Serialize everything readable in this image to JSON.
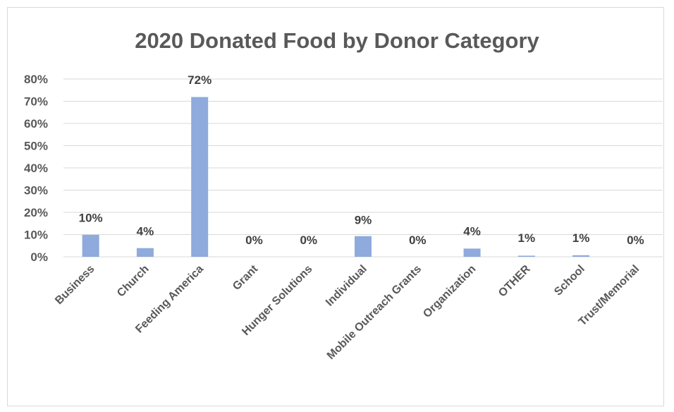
{
  "chart_data": {
    "type": "bar",
    "title": "2020 Donated Food by Donor Category",
    "categories": [
      "Business",
      "Church",
      "Feeding America",
      "Grant",
      "Hunger Solutions",
      "Individual",
      "Mobile Outreach Grants",
      "Organization",
      "OTHER",
      "School",
      "Trust/Memorial"
    ],
    "values": [
      10,
      4,
      72,
      0,
      0,
      9,
      0,
      4,
      1,
      1,
      0
    ],
    "data_labels": [
      "10%",
      "4%",
      "72%",
      "0%",
      "0%",
      "9%",
      "0%",
      "4%",
      "1%",
      "1%",
      "0%"
    ],
    "bar_heights_pct": [
      9.9,
      3.9,
      71.9,
      0,
      0,
      9.3,
      0,
      3.7,
      0.5,
      0.7,
      0
    ],
    "yticks": [
      "0%",
      "10%",
      "20%",
      "30%",
      "40%",
      "50%",
      "60%",
      "70%",
      "80%"
    ],
    "ylim": [
      0,
      80
    ],
    "grid": true,
    "bar_color": "#8faadc",
    "grid_color": "#d9d9d9"
  }
}
